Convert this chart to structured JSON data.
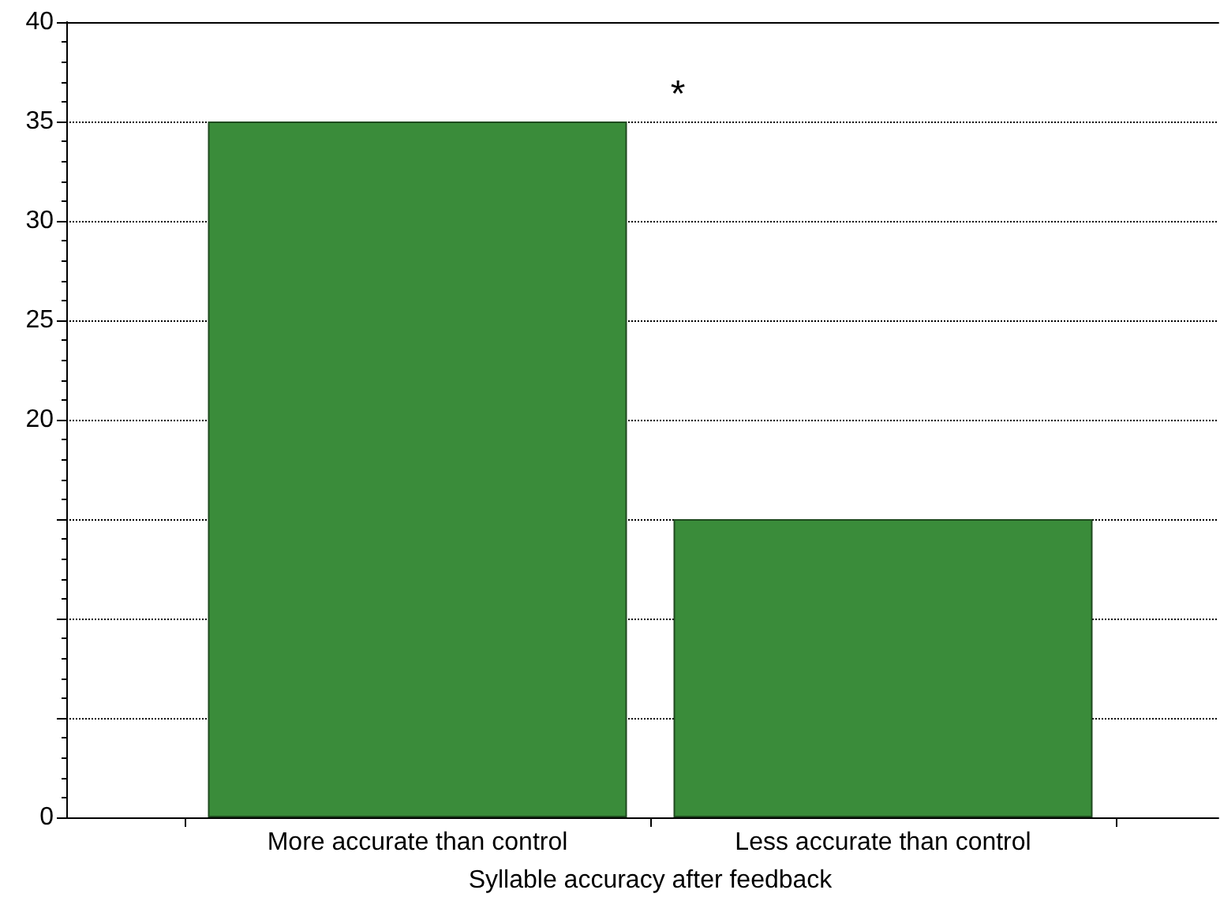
{
  "chart_data": {
    "type": "bar",
    "xlabel": "Syllable accuracy after feedback",
    "categories": [
      "More accurate than control",
      "Less accurate than control"
    ],
    "values": [
      35,
      15
    ],
    "color": "#3a8c3a",
    "ylim": [
      0,
      40
    ],
    "yticks": [
      0,
      {
        "value": 5,
        "label": null
      },
      {
        "value": 10,
        "label": null
      },
      {
        "value": 15,
        "label": null
      },
      20,
      25,
      30,
      35,
      40
    ],
    "grid": "y",
    "line_style": "dotted",
    "annotations": [
      "*"
    ]
  }
}
